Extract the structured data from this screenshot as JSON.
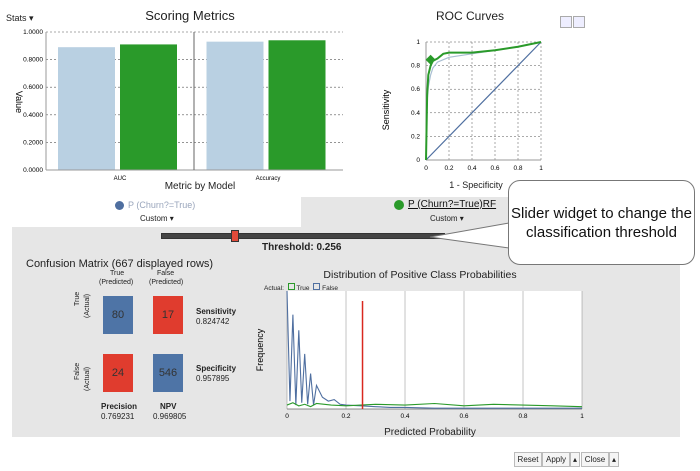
{
  "scoring": {
    "stats_label": "Stats ▾",
    "title": "Scoring Metrics",
    "y_label": "Value",
    "x_label": "Metric by Model",
    "y_ticks": [
      "1.0000",
      "0.8000",
      "0.6000",
      "0.4000",
      "0.2000",
      "0.0000"
    ],
    "categories": [
      "AUC",
      "Accuracy"
    ]
  },
  "roc": {
    "title": "ROC Curves",
    "y_label": "Sensitivity",
    "x_label": "1 - Specificity",
    "y_ticks": [
      "1",
      "0.8",
      "0.6",
      "0.4",
      "0.2",
      "0"
    ],
    "x_ticks": [
      "0",
      "0.2",
      "0.4",
      "0.6",
      "0.8",
      "1"
    ]
  },
  "legend": {
    "model1": "P (Churn?=True)",
    "model2": "P (Churn?=True)RF",
    "custom": "Custom ▾",
    "colors": {
      "model1": "#4f6fa0",
      "model2": "#2a9a2a"
    }
  },
  "threshold": {
    "label": "Threshold: 0.256",
    "value": 0.256
  },
  "confusion": {
    "title": "Confusion Matrix (667 displayed rows)",
    "col_true": "True",
    "col_false": "False",
    "col_pred": "(Predicted)",
    "row_true": "True",
    "row_false": "False",
    "row_actual": "(Actual)",
    "tp": "80",
    "fn": "17",
    "fp": "24",
    "tn": "546",
    "sensitivity_label": "Sensitivity",
    "sensitivity_value": "0.824742",
    "specificity_label": "Specificity",
    "specificity_value": "0.957895",
    "precision_label": "Precision",
    "precision_value": "0.769231",
    "npv_label": "NPV",
    "npv_value": "0.969805"
  },
  "distribution": {
    "title": "Distribution of Positive Class Probabilities",
    "legend_actual": "Actual:",
    "legend_true": "True",
    "legend_false": "False",
    "y_label": "Frequency",
    "x_label": "Predicted Probability",
    "x_ticks": [
      "0",
      "0.2",
      "0.4",
      "0.6",
      "0.8",
      "1"
    ]
  },
  "callout": {
    "text": "Slider widget to change the classification threshold"
  },
  "buttons": {
    "reset": "Reset",
    "apply": "Apply",
    "close": "Close",
    "arrow": "▴"
  },
  "chart_data": [
    {
      "type": "bar",
      "title": "Scoring Metrics",
      "xlabel": "Metric by Model",
      "ylabel": "Value",
      "categories": [
        "AUC",
        "Accuracy"
      ],
      "ylim": [
        0,
        1
      ],
      "series": [
        {
          "name": "P (Churn?=True)",
          "color": "#b9d0e2",
          "values": [
            0.89,
            0.93
          ]
        },
        {
          "name": "P (Churn?=True)RF",
          "color": "#2a9a2a",
          "values": [
            0.91,
            0.94
          ]
        }
      ]
    },
    {
      "type": "line",
      "title": "ROC Curves",
      "xlabel": "1 - Specificity",
      "ylabel": "Sensitivity",
      "xlim": [
        0,
        1
      ],
      "ylim": [
        0,
        1
      ],
      "series": [
        {
          "name": "P (Churn?=True)",
          "color": "#a9bfd2",
          "x": [
            0,
            0.01,
            0.02,
            0.04,
            0.06,
            0.1,
            0.2,
            0.4,
            0.6,
            0.8,
            1
          ],
          "y": [
            0,
            0.5,
            0.62,
            0.72,
            0.78,
            0.83,
            0.87,
            0.9,
            0.93,
            0.96,
            1
          ]
        },
        {
          "name": "P (Churn?=True)RF",
          "color": "#2a9a2a",
          "x": [
            0,
            0.01,
            0.02,
            0.04,
            0.06,
            0.1,
            0.15,
            0.2,
            0.3,
            0.4,
            0.6,
            0.8,
            1
          ],
          "y": [
            0,
            0.55,
            0.72,
            0.8,
            0.84,
            0.86,
            0.9,
            0.91,
            0.91,
            0.91,
            0.93,
            0.96,
            1
          ]
        },
        {
          "name": "diagonal",
          "color": "#4f6fa0",
          "x": [
            0,
            1
          ],
          "y": [
            0,
            1
          ]
        }
      ],
      "marker": {
        "x": 0.04,
        "y": 0.85
      }
    },
    {
      "type": "line",
      "title": "Distribution of Positive Class Probabilities",
      "xlabel": "Predicted Probability",
      "ylabel": "Frequency",
      "xlim": [
        0,
        1
      ],
      "ymax": 150,
      "threshold": 0.256,
      "series": [
        {
          "name": "True",
          "color": "#2a9a2a",
          "x": [
            0,
            0.02,
            0.04,
            0.06,
            0.08,
            0.1,
            0.15,
            0.2,
            0.3,
            0.4,
            0.5,
            0.6,
            0.7,
            0.8,
            0.9,
            1
          ],
          "y": [
            5,
            8,
            4,
            6,
            3,
            7,
            5,
            4,
            6,
            5,
            7,
            4,
            6,
            5,
            4,
            3
          ]
        },
        {
          "name": "False",
          "color": "#4f6fa0",
          "x": [
            0,
            0.01,
            0.02,
            0.03,
            0.04,
            0.05,
            0.06,
            0.07,
            0.08,
            0.09,
            0.1,
            0.12,
            0.14,
            0.16,
            0.18,
            0.2,
            0.25,
            0.3,
            0.35,
            0.4,
            0.5,
            0.6,
            0.8,
            1
          ],
          "y": [
            150,
            10,
            120,
            5,
            100,
            8,
            70,
            6,
            45,
            5,
            30,
            15,
            10,
            12,
            6,
            5,
            4,
            3,
            2,
            2,
            1,
            1,
            1,
            1
          ]
        }
      ]
    }
  ]
}
